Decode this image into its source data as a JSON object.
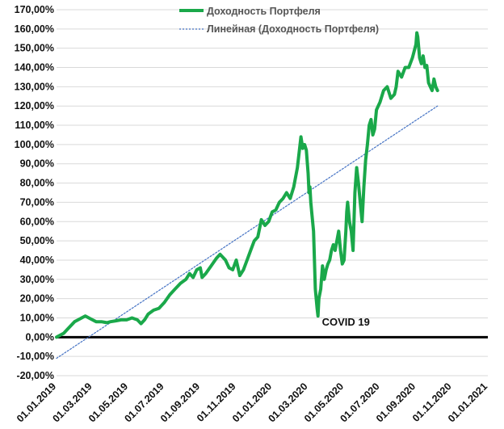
{
  "chart_data": {
    "type": "line",
    "y_axis": {
      "min": -20,
      "max": 170,
      "step": 10,
      "tick_labels": [
        "-20,00%",
        "-10,00%",
        "0,00%",
        "10,00%",
        "20,00%",
        "30,00%",
        "40,00%",
        "50,00%",
        "60,00%",
        "70,00%",
        "80,00%",
        "90,00%",
        "100,00%",
        "110,00%",
        "120,00%",
        "130,00%",
        "140,00%",
        "150,00%",
        "160,00%",
        "170,00%"
      ]
    },
    "x_axis": {
      "tick_labels": [
        "01.01.2019",
        "01.03.2019",
        "01.05.2019",
        "01.07.2019",
        "01.09.2019",
        "01.11.2019",
        "01.01.2020",
        "01.03.2020",
        "01.05.2020",
        "01.07.2020",
        "01.09.2020",
        "01.11.2020",
        "01.01.2021"
      ],
      "tick_months": [
        0,
        2,
        4,
        6,
        8,
        10,
        12,
        14,
        16,
        18,
        20,
        22,
        24
      ]
    },
    "grid": "horizontal",
    "legend_position": "top-center",
    "series": [
      {
        "name": "Доходность Портфеля",
        "color": "#1aa84a",
        "points": [
          [
            0.0,
            0
          ],
          [
            0.2,
            1
          ],
          [
            0.4,
            2
          ],
          [
            0.6,
            4
          ],
          [
            0.8,
            6
          ],
          [
            1.0,
            8
          ],
          [
            1.2,
            9
          ],
          [
            1.4,
            10
          ],
          [
            1.6,
            11
          ],
          [
            1.8,
            10
          ],
          [
            2.0,
            9
          ],
          [
            2.2,
            8
          ],
          [
            2.5,
            8
          ],
          [
            2.8,
            7.5
          ],
          [
            3.0,
            8
          ],
          [
            3.3,
            8.5
          ],
          [
            3.6,
            9
          ],
          [
            3.9,
            9
          ],
          [
            4.2,
            10
          ],
          [
            4.5,
            9
          ],
          [
            4.7,
            7
          ],
          [
            4.9,
            9
          ],
          [
            5.1,
            12
          ],
          [
            5.4,
            14
          ],
          [
            5.7,
            15
          ],
          [
            6.0,
            18
          ],
          [
            6.3,
            22
          ],
          [
            6.6,
            25
          ],
          [
            6.9,
            28
          ],
          [
            7.2,
            30
          ],
          [
            7.4,
            33
          ],
          [
            7.6,
            31
          ],
          [
            7.8,
            35
          ],
          [
            8.0,
            36
          ],
          [
            8.1,
            31
          ],
          [
            8.3,
            33
          ],
          [
            8.6,
            37
          ],
          [
            8.9,
            41
          ],
          [
            9.1,
            43
          ],
          [
            9.4,
            40
          ],
          [
            9.6,
            36
          ],
          [
            9.8,
            35
          ],
          [
            10.0,
            40
          ],
          [
            10.2,
            32
          ],
          [
            10.4,
            35
          ],
          [
            10.6,
            40
          ],
          [
            10.8,
            45
          ],
          [
            11.0,
            50
          ],
          [
            11.2,
            52
          ],
          [
            11.4,
            61
          ],
          [
            11.6,
            58
          ],
          [
            11.8,
            60
          ],
          [
            12.0,
            65
          ],
          [
            12.2,
            66
          ],
          [
            12.4,
            70
          ],
          [
            12.6,
            72
          ],
          [
            12.8,
            75
          ],
          [
            13.0,
            72
          ],
          [
            13.2,
            78
          ],
          [
            13.4,
            88
          ],
          [
            13.6,
            104
          ],
          [
            13.7,
            98
          ],
          [
            13.8,
            100
          ],
          [
            13.9,
            97
          ],
          [
            14.0,
            85
          ],
          [
            14.05,
            75
          ],
          [
            14.1,
            78
          ],
          [
            14.15,
            70
          ],
          [
            14.2,
            65
          ],
          [
            14.3,
            55
          ],
          [
            14.35,
            40
          ],
          [
            14.4,
            25
          ],
          [
            14.5,
            15
          ],
          [
            14.55,
            11
          ],
          [
            14.6,
            20
          ],
          [
            14.7,
            25
          ],
          [
            14.8,
            37
          ],
          [
            14.9,
            30
          ],
          [
            15.0,
            35
          ],
          [
            15.1,
            38
          ],
          [
            15.2,
            40
          ],
          [
            15.3,
            45
          ],
          [
            15.4,
            48
          ],
          [
            15.5,
            45
          ],
          [
            15.6,
            50
          ],
          [
            15.7,
            55
          ],
          [
            15.8,
            45
          ],
          [
            15.9,
            38
          ],
          [
            16.0,
            40
          ],
          [
            16.1,
            55
          ],
          [
            16.15,
            65
          ],
          [
            16.2,
            70
          ],
          [
            16.3,
            60
          ],
          [
            16.4,
            55
          ],
          [
            16.5,
            45
          ],
          [
            16.6,
            75
          ],
          [
            16.7,
            88
          ],
          [
            16.8,
            80
          ],
          [
            16.9,
            70
          ],
          [
            17.0,
            60
          ],
          [
            17.1,
            78
          ],
          [
            17.2,
            92
          ],
          [
            17.3,
            100
          ],
          [
            17.4,
            110
          ],
          [
            17.5,
            113
          ],
          [
            17.6,
            105
          ],
          [
            17.7,
            108
          ],
          [
            17.8,
            118
          ],
          [
            18.0,
            122
          ],
          [
            18.2,
            128
          ],
          [
            18.4,
            130
          ],
          [
            18.6,
            124
          ],
          [
            18.8,
            126
          ],
          [
            18.9,
            130
          ],
          [
            19.0,
            138
          ],
          [
            19.2,
            135
          ],
          [
            19.4,
            140
          ],
          [
            19.6,
            140
          ],
          [
            19.8,
            145
          ],
          [
            20.0,
            152
          ],
          [
            20.05,
            158
          ],
          [
            20.1,
            156
          ],
          [
            20.2,
            145
          ],
          [
            20.3,
            142
          ],
          [
            20.4,
            146
          ],
          [
            20.5,
            140
          ],
          [
            20.6,
            141
          ],
          [
            20.7,
            132
          ],
          [
            20.8,
            130
          ],
          [
            20.9,
            128
          ],
          [
            21.0,
            134
          ],
          [
            21.1,
            130
          ],
          [
            21.2,
            128
          ]
        ]
      },
      {
        "name": "Линейная (Доходность Портфеля)",
        "color": "#4472c4",
        "dashed": true,
        "points": [
          [
            0,
            -11
          ],
          [
            21.2,
            120
          ]
        ]
      }
    ],
    "baseline": 0,
    "annotations": [
      {
        "text": "COVID 19",
        "x_month": 14.5,
        "y_value": 6
      }
    ]
  }
}
